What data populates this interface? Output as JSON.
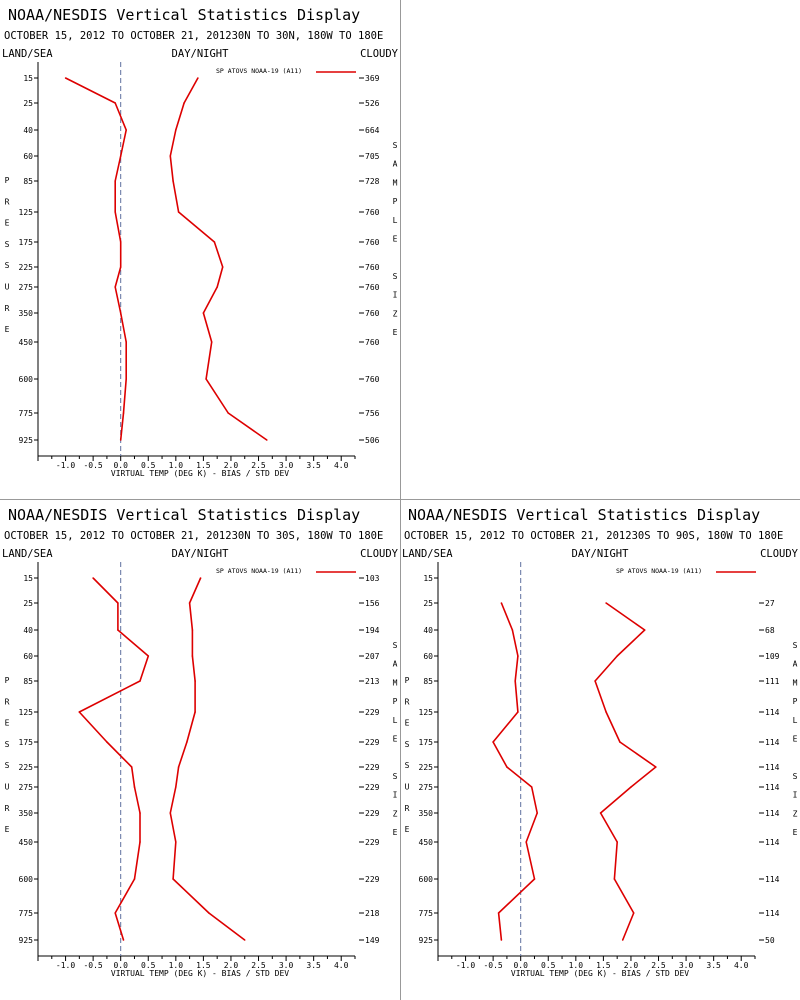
{
  "colors": {
    "series": "#dd0000",
    "axis": "#000000",
    "zero": "#6070a0"
  },
  "chart_data": [
    {
      "type": "line",
      "title": "NOAA/NESDIS Vertical Statistics Display",
      "subtitle": "OCTOBER 15, 2012 TO OCTOBER 21, 201230N TO 30N, 180W TO 180E",
      "left_label": "LAND/SEA",
      "center_label": "DAY/NIGHT",
      "right_label": "CLOUDY",
      "ylabel": "PRESSURE",
      "y2label": "SAMPLE SIZE",
      "xlabel": "VIRTUAL TEMP (DEG K) - BIAS / STD DEV",
      "legend": "SP ATOVS NOAA-19 (A11)",
      "xlim": [
        -1.5,
        4.25
      ],
      "xticks": [
        "-1.0",
        "-0.5",
        "0.0",
        "0.5",
        "1.0",
        "1.5",
        "2.0",
        "2.5",
        "3.0",
        "3.5",
        "4.0"
      ],
      "levels": [
        "15",
        "25",
        "40",
        "60",
        "85",
        "125",
        "175",
        "225",
        "275",
        "350",
        "450",
        "600",
        "775",
        "925"
      ],
      "samples": [
        "369",
        "526",
        "664",
        "705",
        "728",
        "760",
        "760",
        "760",
        "760",
        "760",
        "760",
        "760",
        "756",
        "506"
      ],
      "series": [
        {
          "name": "bias",
          "values": [
            -1.0,
            -0.1,
            0.1,
            0.0,
            -0.1,
            -0.1,
            0.0,
            0.0,
            -0.1,
            0.0,
            0.1,
            0.1,
            0.05,
            0.0
          ]
        },
        {
          "name": "std dev",
          "values": [
            1.4,
            1.15,
            1.0,
            0.9,
            0.95,
            1.05,
            1.7,
            1.85,
            1.75,
            1.5,
            1.65,
            1.55,
            1.95,
            2.65
          ]
        }
      ]
    },
    {
      "type": "line",
      "title": "NOAA/NESDIS Vertical Statistics Display",
      "subtitle": "OCTOBER 15, 2012 TO OCTOBER 21, 201230N TO 30S, 180W TO 180E",
      "left_label": "LAND/SEA",
      "center_label": "DAY/NIGHT",
      "right_label": "CLOUDY",
      "ylabel": "PRESSURE",
      "y2label": "SAMPLE SIZE",
      "xlabel": "VIRTUAL TEMP (DEG K) - BIAS / STD DEV",
      "legend": "SP ATOVS NOAA-19 (A11)",
      "xlim": [
        -1.5,
        4.25
      ],
      "xticks": [
        "-1.0",
        "-0.5",
        "0.0",
        "0.5",
        "1.0",
        "1.5",
        "2.0",
        "2.5",
        "3.0",
        "3.5",
        "4.0"
      ],
      "levels": [
        "15",
        "25",
        "40",
        "60",
        "85",
        "125",
        "175",
        "225",
        "275",
        "350",
        "450",
        "600",
        "775",
        "925"
      ],
      "samples": [
        "103",
        "156",
        "194",
        "207",
        "213",
        "229",
        "229",
        "229",
        "229",
        "229",
        "229",
        "229",
        "218",
        "149"
      ],
      "series": [
        {
          "name": "bias",
          "values": [
            -0.5,
            -0.05,
            -0.05,
            0.5,
            0.35,
            -0.75,
            -0.25,
            0.2,
            0.25,
            0.35,
            0.35,
            0.25,
            -0.1,
            0.05
          ]
        },
        {
          "name": "std dev",
          "values": [
            1.45,
            1.25,
            1.3,
            1.3,
            1.35,
            1.35,
            1.2,
            1.05,
            1.0,
            0.9,
            1.0,
            0.95,
            1.6,
            2.25
          ]
        }
      ]
    },
    {
      "type": "line",
      "title": "NOAA/NESDIS Vertical Statistics Display",
      "subtitle": "OCTOBER 15, 2012 TO OCTOBER 21, 201230S TO 90S, 180W TO 180E",
      "left_label": "LAND/SEA",
      "center_label": "DAY/NIGHT",
      "right_label": "CLOUDY",
      "ylabel": "PRESSURE",
      "y2label": "SAMPLE SIZE",
      "xlabel": "VIRTUAL TEMP (DEG K) - BIAS / STD DEV",
      "legend": "SP ATOVS NOAA-19 (A11)",
      "xlim": [
        -1.5,
        4.25
      ],
      "xticks": [
        "-1.0",
        "-0.5",
        "0.0",
        "0.5",
        "1.0",
        "1.5",
        "2.0",
        "2.5",
        "3.0",
        "3.5",
        "4.0"
      ],
      "levels": [
        "15",
        "25",
        "40",
        "60",
        "85",
        "125",
        "175",
        "225",
        "275",
        "350",
        "450",
        "600",
        "775",
        "925"
      ],
      "samples": [
        "",
        "27",
        "68",
        "109",
        "111",
        "114",
        "114",
        "114",
        "114",
        "114",
        "114",
        "114",
        "114",
        "50"
      ],
      "series": [
        {
          "name": "bias",
          "values": [
            null,
            -0.35,
            -0.15,
            -0.05,
            -0.1,
            -0.05,
            -0.5,
            -0.25,
            0.2,
            0.3,
            0.1,
            0.25,
            -0.4,
            -0.35
          ]
        },
        {
          "name": "std dev",
          "values": [
            null,
            1.55,
            2.25,
            1.75,
            1.35,
            1.55,
            1.8,
            2.45,
            2.0,
            1.45,
            1.75,
            1.7,
            2.05,
            1.85
          ]
        }
      ]
    }
  ]
}
